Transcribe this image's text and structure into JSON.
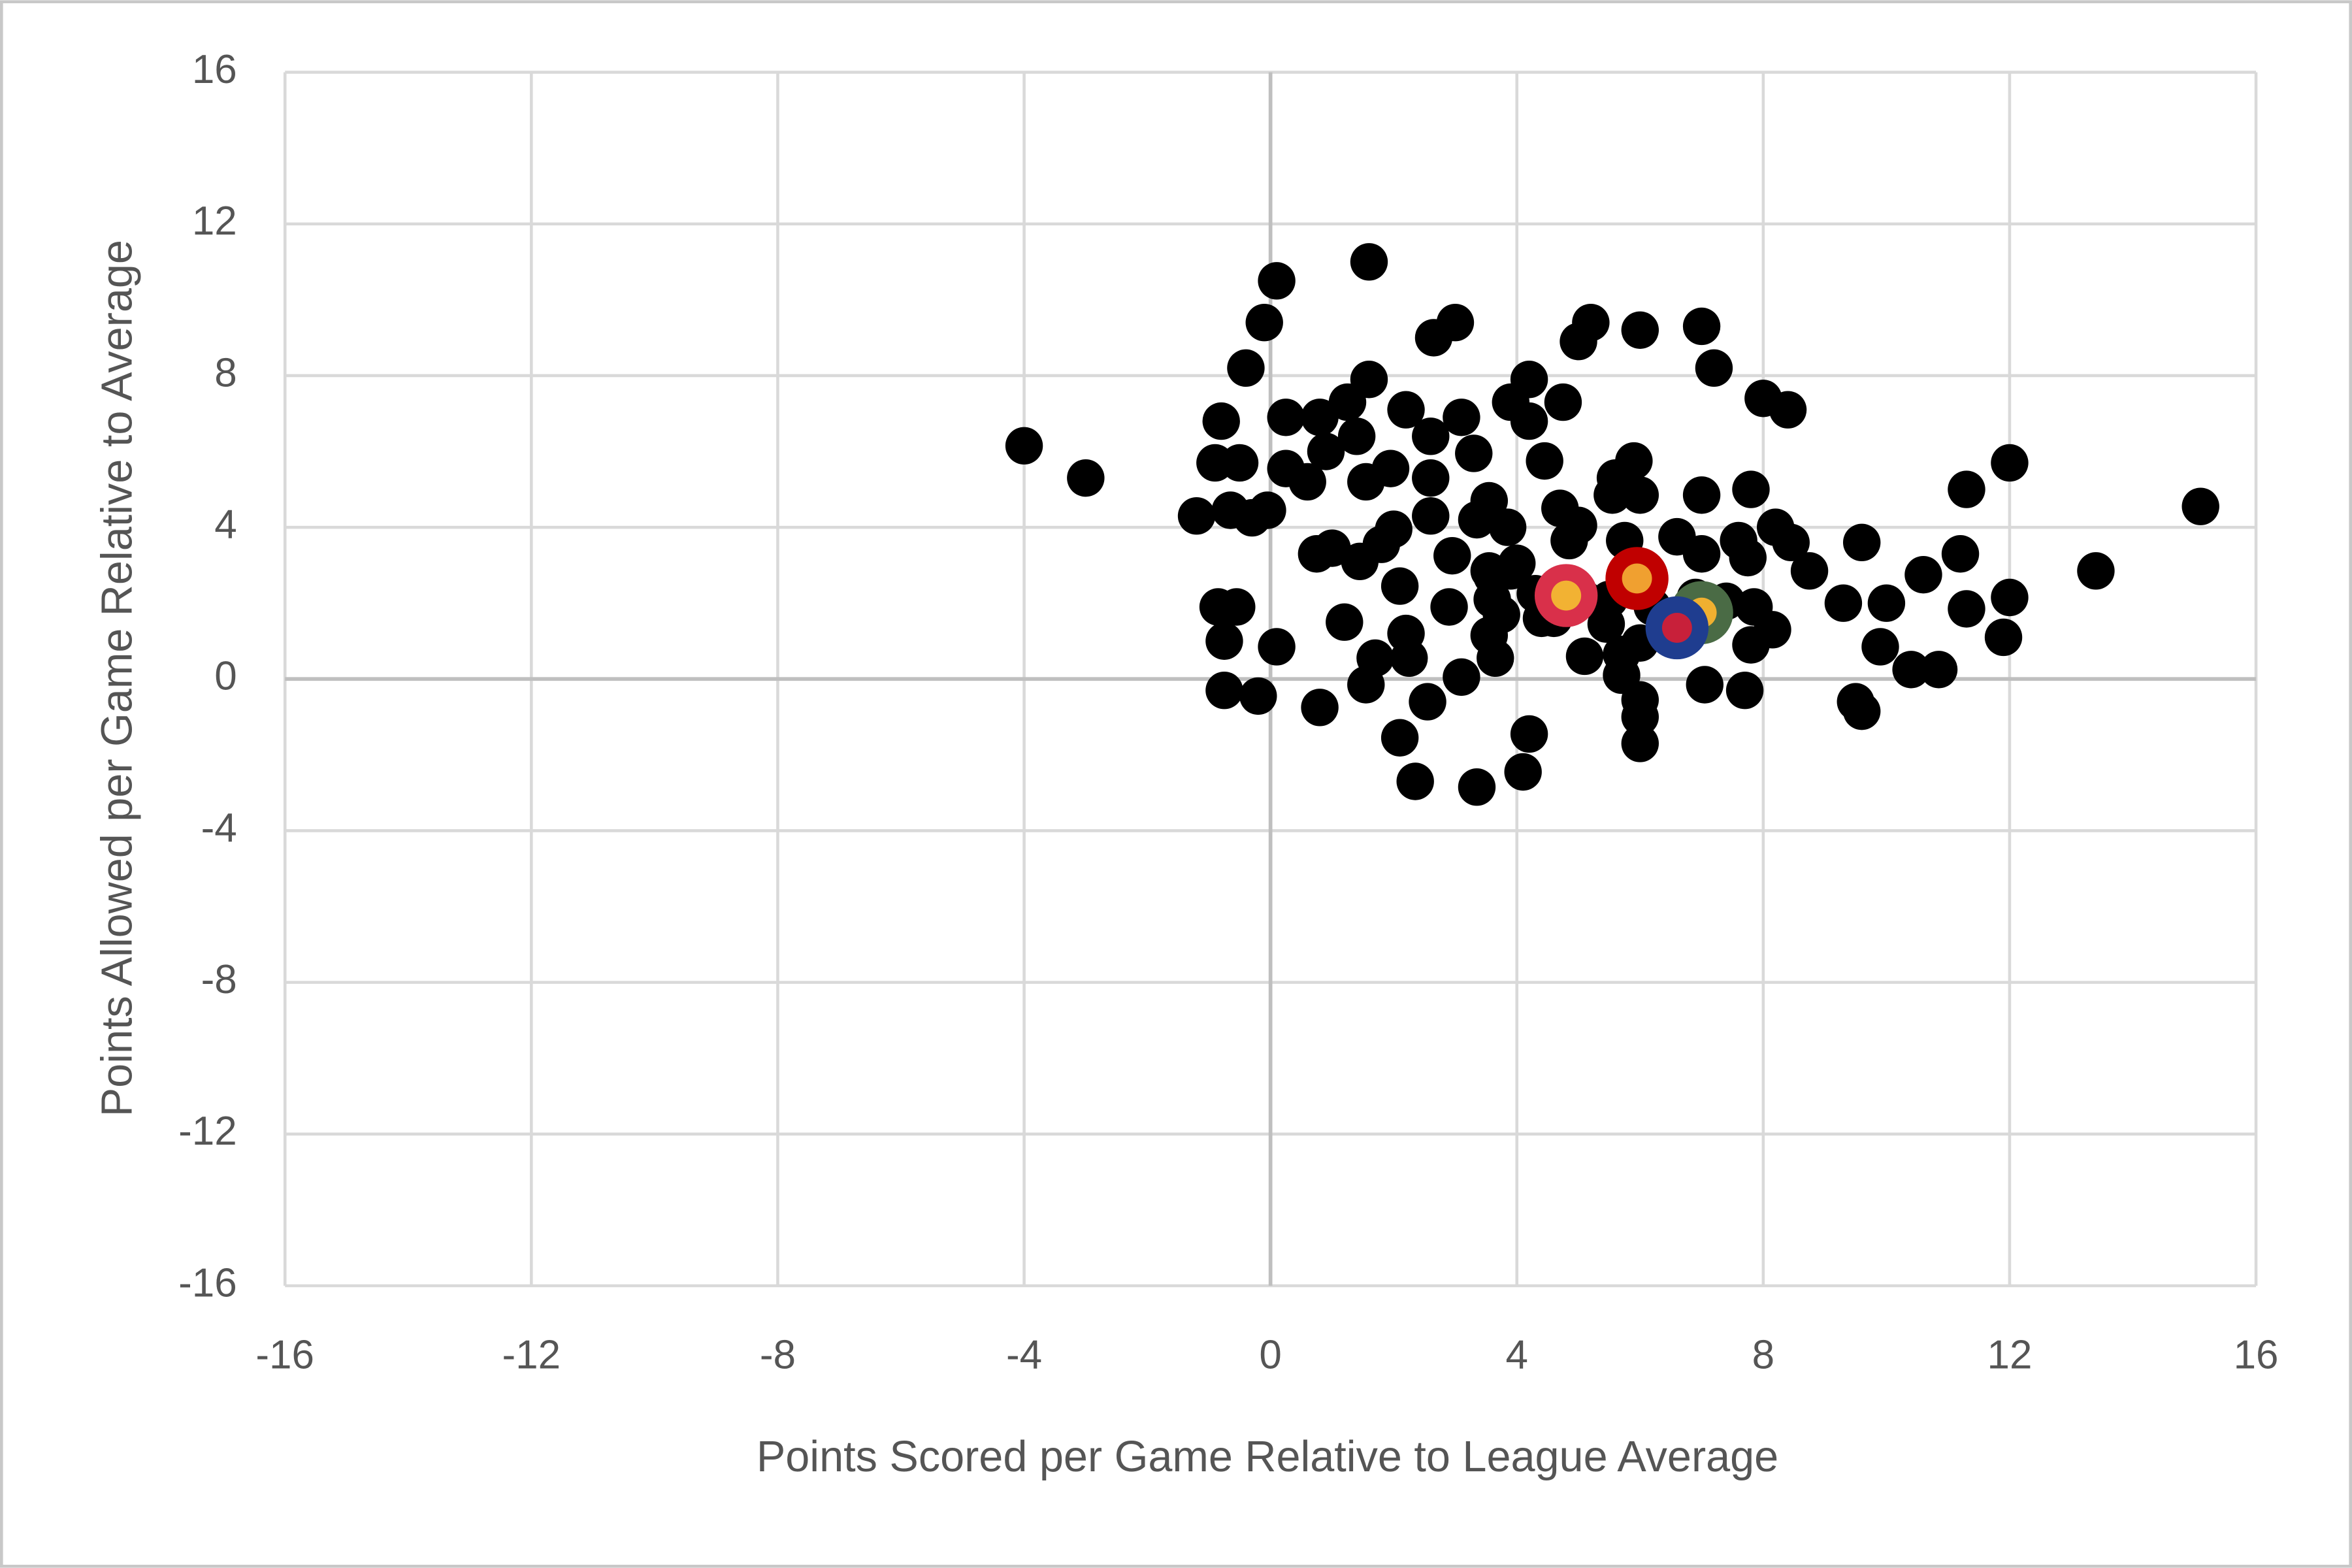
{
  "chart_data": {
    "type": "scatter",
    "x_label": "Points  Scored per Game Relative to League Average",
    "y_label": "Points  Allowed per Game Relative to Average",
    "xlim": [
      -16,
      16
    ],
    "ylim": [
      -16,
      16
    ],
    "xticks": [
      -16,
      -12,
      -8,
      -4,
      0,
      4,
      8,
      12,
      16
    ],
    "yticks": [
      -16,
      -12,
      -8,
      -4,
      0,
      4,
      8,
      12,
      16
    ],
    "grid": true,
    "series": [
      {
        "color": "#000000",
        "x": [
          -4.0,
          -3.0,
          -1.2,
          -0.8,
          -0.9,
          -0.5,
          -0.4,
          -0.1,
          0.1,
          1.6,
          2.65,
          3.0,
          5.2,
          5.0,
          6.0,
          7.0,
          7.2,
          8.0,
          8.4,
          4.75,
          4.2,
          3.9,
          1.6,
          0.25,
          0.8,
          2.2,
          3.1,
          4.2,
          3.3,
          1.25,
          1.4,
          2.6,
          0.9,
          0.25,
          0.6,
          1.55,
          1.95,
          2.6,
          4.45,
          5.9,
          5.6,
          5.55,
          6.0,
          7.0,
          7.8,
          11.3,
          12.0,
          15.1,
          13.4,
          9.6,
          11.2,
          10.6,
          8.75,
          8.2,
          8.45,
          7.6,
          7.75,
          6.6,
          7.0,
          7.4,
          7.85,
          8.15,
          7.8,
          9.3,
          10.0,
          11.3,
          12.0,
          11.9,
          9.9,
          10.4,
          10.85,
          9.5,
          9.6,
          7.7,
          7.05,
          6.0,
          6.0,
          6.0,
          4.2,
          4.1,
          3.35,
          2.35,
          2.1,
          2.55,
          0.8,
          -0.2,
          -0.75,
          0.1,
          -0.75,
          -0.85,
          -0.55,
          1.2,
          1.55,
          1.7,
          2.25,
          2.2,
          2.1,
          2.9,
          3.1,
          3.65,
          3.55,
          3.75,
          4.4,
          5.1,
          5.7,
          5.7,
          6.0,
          5.45,
          5.1,
          5.5,
          4.3,
          3.9,
          3.6,
          3.6,
          4.85,
          5.0,
          4.7,
          3.85,
          3.55,
          3.35,
          4.0,
          3.55,
          2.95,
          2.6,
          2.0,
          1.8,
          1.45,
          1.0,
          0.75,
          -0.3,
          -0.65,
          -0.05,
          5.75,
          6.9,
          6.2,
          4.6
        ],
        "values": [
          6.15,
          5.3,
          4.3,
          6.8,
          5.7,
          5.7,
          8.2,
          9.4,
          10.5,
          11.0,
          9.0,
          9.4,
          9.4,
          8.9,
          9.2,
          9.3,
          8.2,
          7.4,
          7.1,
          7.3,
          7.9,
          7.3,
          7.9,
          6.9,
          6.9,
          7.1,
          6.9,
          6.8,
          5.95,
          7.3,
          6.4,
          6.4,
          6.0,
          5.55,
          5.2,
          5.2,
          5.55,
          5.3,
          5.75,
          5.75,
          5.3,
          4.85,
          4.85,
          4.85,
          5.0,
          5.0,
          5.7,
          4.55,
          2.85,
          3.6,
          3.3,
          2.75,
          2.85,
          4.0,
          3.6,
          3.65,
          3.2,
          3.75,
          3.3,
          2.05,
          1.9,
          1.3,
          0.9,
          2.0,
          2.0,
          1.85,
          2.15,
          1.1,
          0.85,
          0.25,
          0.25,
          -0.6,
          -0.85,
          -0.3,
          -0.15,
          -0.55,
          -1.0,
          -1.7,
          -1.45,
          -2.45,
          -2.85,
          -2.7,
          -1.55,
          -0.6,
          -0.75,
          -0.45,
          -0.3,
          0.85,
          1.0,
          1.9,
          1.9,
          1.5,
          -0.15,
          0.55,
          0.55,
          1.2,
          2.45,
          1.9,
          0.05,
          0.55,
          1.15,
          1.7,
          1.6,
          0.6,
          0.65,
          0.1,
          0.95,
          1.45,
          2.1,
          2.1,
          2.25,
          2.85,
          2.1,
          2.7,
          3.65,
          4.05,
          4.5,
          4.0,
          4.7,
          4.2,
          3.05,
          2.85,
          3.25,
          4.3,
          3.95,
          3.55,
          3.1,
          3.45,
          3.3,
          4.25,
          4.45,
          4.45,
          3.65,
          2.15,
          1.9,
          1.6
        ]
      },
      {
        "color": "#c00000",
        "inner_color": "#f0a030",
        "x": [
          5.95
        ],
        "values": [
          2.65
        ]
      },
      {
        "color": "#d9304a",
        "inner_color": "#f2b233",
        "x": [
          4.8
        ],
        "values": [
          2.2
        ]
      },
      {
        "color": "#4a6b45",
        "inner_color": "#f0b030",
        "x": [
          7.0
        ],
        "values": [
          1.75
        ]
      },
      {
        "color": "#1f3d8f",
        "inner_color": "#c8203a",
        "x": [
          6.6
        ],
        "values": [
          1.35
        ]
      }
    ]
  }
}
